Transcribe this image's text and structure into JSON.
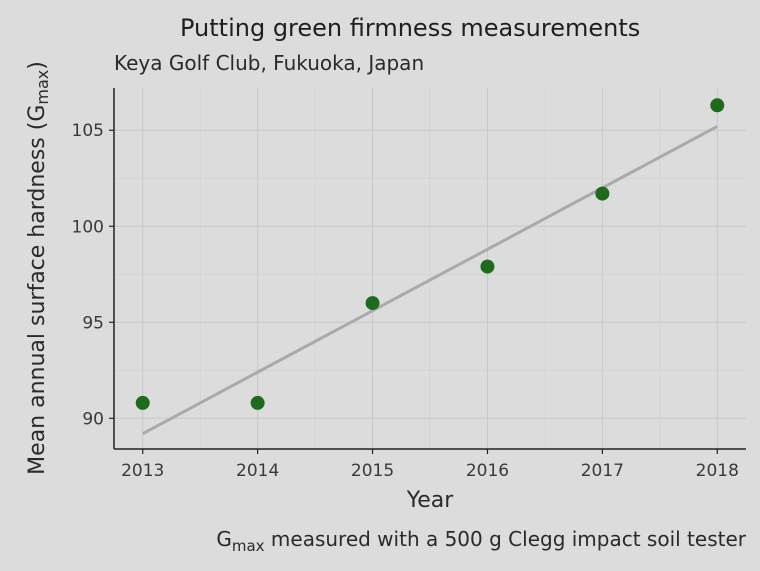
{
  "chart_data": {
    "type": "scatter",
    "title": "Putting green firmness measurements",
    "subtitle": "Keya Golf Club, Fukuoka, Japan",
    "xlabel": "Year",
    "ylabel": "Mean annual surface hardness (G",
    "ylabel_sub": "max",
    "ylabel_end": ")",
    "caption_prefix": "G",
    "caption_sub": "max",
    "caption_text": " measured with a 500 g Clegg impact soil tester",
    "x": [
      2013,
      2014,
      2015,
      2016,
      2017,
      2018
    ],
    "y": [
      90.8,
      90.8,
      96.0,
      97.9,
      101.7,
      106.3
    ],
    "x_ticks": [
      2013,
      2014,
      2015,
      2016,
      2017,
      2018
    ],
    "y_ticks": [
      90,
      95,
      100,
      105
    ],
    "xlim": [
      2012.75,
      2018.25
    ],
    "ylim": [
      88.4,
      107.2
    ],
    "trend_line": {
      "x": [
        2013,
        2018
      ],
      "y": [
        89.2,
        105.2
      ],
      "color": "#aaaaaa"
    },
    "point_color": "#1e6b1e",
    "grid": true
  }
}
